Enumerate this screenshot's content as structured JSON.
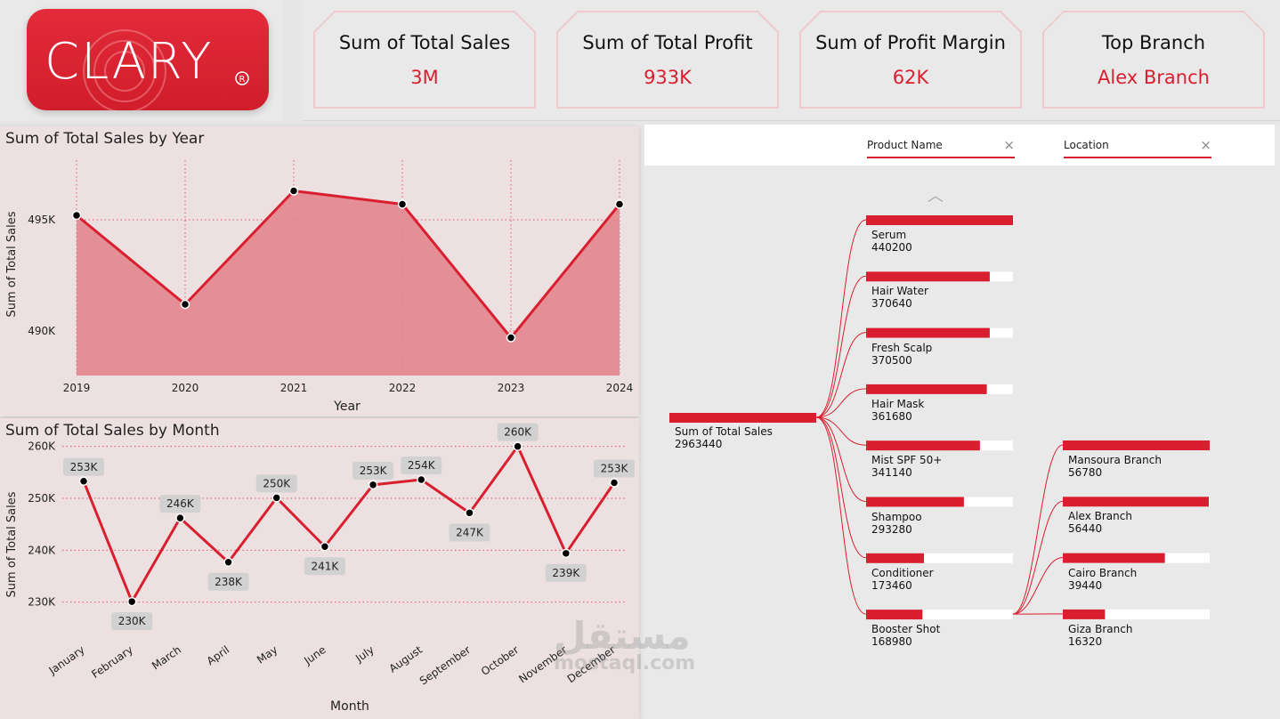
{
  "logo": {
    "text": "CLARY",
    "mark": "®"
  },
  "kpis": [
    {
      "label": "Sum of Total Sales",
      "value": "3M"
    },
    {
      "label": "Sum of Total Profit",
      "value": "933K"
    },
    {
      "label": "Sum of Profit Margin",
      "value": "62K"
    },
    {
      "label": "Top Branch",
      "value": "Alex Branch"
    }
  ],
  "colors": {
    "accent": "#d91f2f",
    "area_fill": "#e3868d",
    "panel_bg": "#ece0e1"
  },
  "year_chart": {
    "title": "Sum of Total Sales by Year",
    "chart_data": {
      "type": "area",
      "categories": [
        "2019",
        "2020",
        "2021",
        "2022",
        "2023",
        "2024"
      ],
      "values": [
        495200,
        491200,
        496300,
        495700,
        489700,
        495700
      ],
      "xlabel": "Year",
      "ylabel": "Sum of Total Sales",
      "yticks": [
        490000,
        495000
      ],
      "ytick_labels": [
        "490K",
        "495K"
      ],
      "ylim": [
        488000,
        498000
      ],
      "grid": true
    }
  },
  "month_chart": {
    "title": "Sum of Total Sales by Month",
    "chart_data": {
      "type": "line",
      "categories": [
        "January",
        "February",
        "March",
        "April",
        "May",
        "June",
        "July",
        "August",
        "September",
        "October",
        "November",
        "December"
      ],
      "values": [
        253300,
        230100,
        246200,
        237700,
        250100,
        240700,
        252600,
        253600,
        247200,
        260000,
        239400,
        253000
      ],
      "data_labels": [
        "253K",
        "230K",
        "246K",
        "238K",
        "250K",
        "241K",
        "253K",
        "254K",
        "247K",
        "260K",
        "239K",
        "253K"
      ],
      "xlabel": "Month",
      "ylabel": "Sum of Total Sales",
      "yticks": [
        230000,
        240000,
        250000,
        260000
      ],
      "ytick_labels": [
        "230K",
        "240K",
        "250K",
        "260K"
      ],
      "ylim": [
        226000,
        262000
      ],
      "grid": true
    }
  },
  "tree": {
    "filters": [
      "Product Name",
      "Location"
    ],
    "close_glyph": "×",
    "up_glyph": "︿",
    "root": {
      "label": "Sum of Total Sales",
      "value": "2963440"
    },
    "products": [
      {
        "label": "Serum",
        "value": "440200",
        "ratio": 1.0
      },
      {
        "label": "Hair Water",
        "value": "370640",
        "ratio": 0.842
      },
      {
        "label": "Fresh Scalp",
        "value": "370500",
        "ratio": 0.842
      },
      {
        "label": "Hair Mask",
        "value": "361680",
        "ratio": 0.822
      },
      {
        "label": "Mist SPF 50+",
        "value": "341140",
        "ratio": 0.775
      },
      {
        "label": "Shampoo",
        "value": "293280",
        "ratio": 0.666
      },
      {
        "label": "Conditioner",
        "value": "173460",
        "ratio": 0.394
      },
      {
        "label": "Booster Shot",
        "value": "168980",
        "ratio": 0.384
      }
    ],
    "locations": [
      {
        "label": "Mansoura Branch",
        "value": "56780",
        "ratio": 1.0
      },
      {
        "label": "Alex Branch",
        "value": "56440",
        "ratio": 0.994
      },
      {
        "label": "Cairo Branch",
        "value": "39440",
        "ratio": 0.695
      },
      {
        "label": "Giza Branch",
        "value": "16320",
        "ratio": 0.287
      }
    ]
  },
  "watermark": {
    "arabic": "مستقل",
    "latin": "mostaql.com"
  }
}
